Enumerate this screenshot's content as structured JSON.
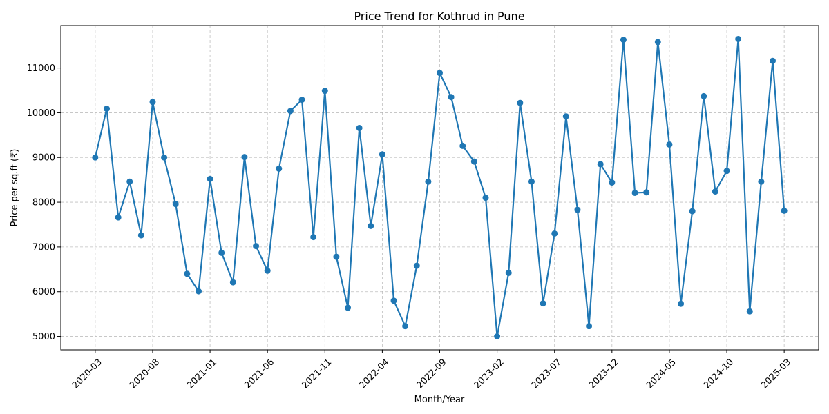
{
  "chart_data": {
    "type": "line",
    "title": "Price Trend for Kothrud in Pune",
    "xlabel": "Month/Year",
    "ylabel": "Price per sq.ft (₹)",
    "x_range": [
      "2020-03",
      "2025-03"
    ],
    "ylim": [
      4700,
      11950
    ],
    "yticks": [
      5000,
      6000,
      7000,
      8000,
      9000,
      10000,
      11000
    ],
    "xticks": [
      "2020-03",
      "2020-08",
      "2021-01",
      "2021-06",
      "2021-11",
      "2022-04",
      "2022-09",
      "2023-02",
      "2023-07",
      "2023-12",
      "2024-05",
      "2024-10",
      "2025-03"
    ],
    "grid": true,
    "color": "#1f77b4",
    "series": [
      {
        "x": [
          "2020-03",
          "2020-04",
          "2020-05",
          "2020-06",
          "2020-07",
          "2020-08",
          "2020-09",
          "2020-10",
          "2020-11",
          "2020-12",
          "2021-01",
          "2021-02",
          "2021-03",
          "2021-04",
          "2021-05",
          "2021-06",
          "2021-07",
          "2021-08",
          "2021-09",
          "2021-10",
          "2021-11",
          "2021-12",
          "2022-01",
          "2022-02",
          "2022-03",
          "2022-04",
          "2022-05",
          "2022-06",
          "2022-07",
          "2022-08",
          "2022-09",
          "2022-10",
          "2022-11",
          "2022-12",
          "2023-01",
          "2023-02",
          "2023-03",
          "2023-04",
          "2023-05",
          "2023-06",
          "2023-07",
          "2023-08",
          "2023-09",
          "2023-10",
          "2023-11",
          "2023-12",
          "2024-01",
          "2024-02",
          "2024-03",
          "2024-04",
          "2024-05",
          "2024-06",
          "2024-07",
          "2024-08",
          "2024-09",
          "2024-10",
          "2024-11",
          "2024-12",
          "2025-01",
          "2025-02",
          "2025-03"
        ],
        "y": [
          9000,
          10090,
          7660,
          8460,
          7260,
          10240,
          9000,
          7960,
          6400,
          6010,
          8520,
          6870,
          6210,
          9010,
          7020,
          6470,
          8750,
          10040,
          10290,
          7220,
          10490,
          6780,
          5640,
          9660,
          7470,
          9070,
          5800,
          5230,
          6580,
          8460,
          10890,
          10350,
          9260,
          8910,
          8100,
          5000,
          6420,
          10220,
          8460,
          5740,
          7300,
          9920,
          7830,
          5230,
          8850,
          8440,
          11630,
          8210,
          8220,
          11580,
          9290,
          5730,
          7800,
          10370,
          8240,
          8700,
          11650,
          5560,
          8460,
          11160,
          7810
        ]
      }
    ]
  }
}
